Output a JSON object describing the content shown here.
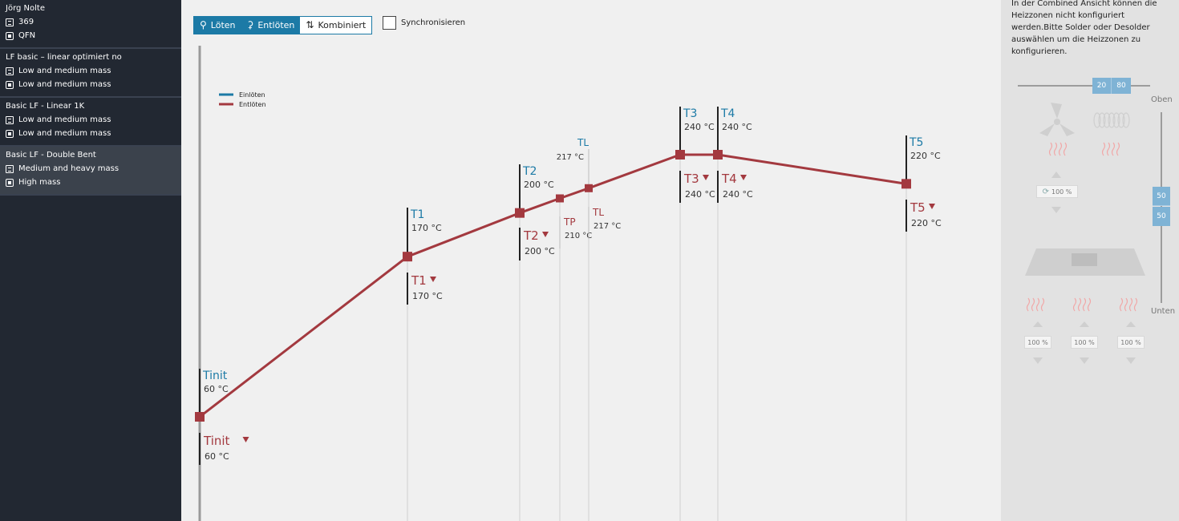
{
  "sidebar": {
    "profiles": [
      {
        "title": "Jörg Nolte",
        "line1": "369",
        "line2": "QFN",
        "active": false
      },
      {
        "title": "LF basic – linear optimiert no",
        "line1": "Low and medium mass",
        "line2": "Low and medium mass",
        "active": false
      },
      {
        "title": "Basic LF - Linear 1K",
        "line1": "Low and medium mass",
        "line2": "Low and medium mass",
        "active": false
      },
      {
        "title": "Basic LF - Double Bent",
        "line1": "Medium and heavy mass",
        "line2": "High mass",
        "active": true
      }
    ]
  },
  "toolbar": {
    "modes": [
      {
        "label": "Löten",
        "icon": "solder-icon",
        "selected": true
      },
      {
        "label": "Entlöten",
        "icon": "desolder-icon",
        "selected": true
      },
      {
        "label": "Kombiniert",
        "icon": "swap-icon",
        "selected": false
      }
    ],
    "sync_label": "Synchronisieren",
    "sync_checked": false
  },
  "chart_data": {
    "type": "line",
    "legend": [
      {
        "name": "Einlöten",
        "color": "#1c7aa6"
      },
      {
        "name": "Entlöten",
        "color": "#a3393f"
      }
    ],
    "legend_placement": "top-left",
    "series": [
      {
        "name": "Entlöten",
        "color": "#a3393f",
        "points": [
          {
            "label": "Tinit",
            "temp": 60
          },
          {
            "label": "T1",
            "temp": 170
          },
          {
            "label": "T2",
            "temp": 200
          },
          {
            "label": "TP",
            "temp": 210
          },
          {
            "label": "TL",
            "temp": 217
          },
          {
            "label": "T3",
            "temp": 240
          },
          {
            "label": "T4",
            "temp": 240
          },
          {
            "label": "T5",
            "temp": 220
          }
        ]
      }
    ],
    "upper_labels": [
      {
        "label": "Tinit",
        "value": "60 °C"
      },
      {
        "label": "T1",
        "value": "170 °C"
      },
      {
        "label": "T2",
        "value": "200 °C"
      },
      {
        "label": "TL",
        "value": "217 °C"
      },
      {
        "label": "T3",
        "value": "240 °C"
      },
      {
        "label": "T4",
        "value": "240 °C"
      },
      {
        "label": "T5",
        "value": "220 °C"
      }
    ],
    "lower_labels": [
      {
        "label": "Tinit",
        "value": "60 °C",
        "arrow": true
      },
      {
        "label": "T1",
        "value": "170 °C",
        "arrow": true
      },
      {
        "label": "T2",
        "value": "200 °C",
        "arrow": true
      },
      {
        "label": "TP",
        "value": "210 °C",
        "arrow": false
      },
      {
        "label": "TL",
        "value": "217 °C",
        "arrow": false
      },
      {
        "label": "T3",
        "value": "240 °C",
        "arrow": true
      },
      {
        "label": "T4",
        "value": "240 °C",
        "arrow": true
      },
      {
        "label": "T5",
        "value": "220 °C",
        "arrow": true
      }
    ]
  },
  "right_panel": {
    "note": "In der Combined Ansicht können die Heizzonen nicht konfiguriert werden.Bitte Solder oder Desolder auswählen um die Heizzonen zu konfigurieren.",
    "split_top": "20",
    "split_bottom": "80",
    "label_top": "Oben",
    "label_bottom": "Unten",
    "vert_top": "50",
    "vert_bottom": "50",
    "fan_percent": "100 %",
    "bottom_percents": [
      "100 %",
      "100 %",
      "100 %"
    ]
  }
}
